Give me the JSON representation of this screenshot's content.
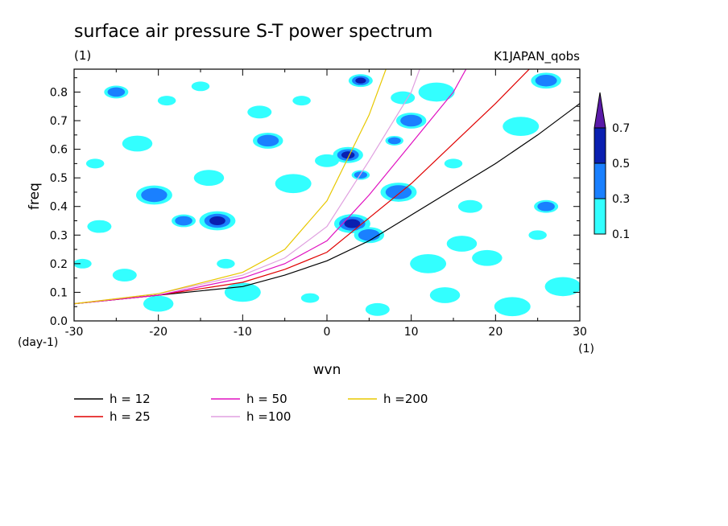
{
  "chart_data": {
    "type": "heatmap",
    "title": "surface air pressure S-T power spectrum",
    "subtitle_left": "(1)",
    "subtitle_right": "K1JAPAN_qobs",
    "xlabel": "wvn",
    "ylabel": "freq",
    "x_unit": "(1)",
    "y_unit": "(day-1)",
    "xlim": [
      -30,
      30
    ],
    "ylim": [
      0,
      0.88
    ],
    "x_ticks": [
      -30,
      -20,
      -10,
      0,
      10,
      20,
      30
    ],
    "x_tick_labels": [
      "-30",
      "-20",
      "-10",
      "0",
      "10",
      "20",
      "30"
    ],
    "y_ticks": [
      0,
      0.1,
      0.2,
      0.3,
      0.4,
      0.5,
      0.6,
      0.7,
      0.8
    ],
    "y_tick_labels": [
      "0.0",
      "0.1",
      "0.2",
      "0.3",
      "0.4",
      "0.5",
      "0.6",
      "0.7",
      "0.8"
    ],
    "colorbar": {
      "levels": [
        "0.1",
        "0.3",
        "0.5",
        "0.7"
      ],
      "colors": [
        "#33ffff",
        "#1a80ff",
        "#0a1fb0",
        "#5a1aa8"
      ]
    },
    "contour_blobs": [
      {
        "x": -27.5,
        "y": 0.55,
        "level": 1
      },
      {
        "x": -25,
        "y": 0.8,
        "level": 2
      },
      {
        "x": -22.5,
        "y": 0.62,
        "level": 1
      },
      {
        "x": -20.5,
        "y": 0.44,
        "level": 2
      },
      {
        "x": -19,
        "y": 0.77,
        "level": 1
      },
      {
        "x": -17,
        "y": 0.35,
        "level": 2
      },
      {
        "x": -14,
        "y": 0.5,
        "level": 1
      },
      {
        "x": -13,
        "y": 0.35,
        "level": 3
      },
      {
        "x": -15,
        "y": 0.82,
        "level": 1
      },
      {
        "x": -8,
        "y": 0.73,
        "level": 1
      },
      {
        "x": -7,
        "y": 0.63,
        "level": 2
      },
      {
        "x": -4,
        "y": 0.48,
        "level": 1
      },
      {
        "x": -3,
        "y": 0.77,
        "level": 1
      },
      {
        "x": 0,
        "y": 0.56,
        "level": 1
      },
      {
        "x": 2.5,
        "y": 0.58,
        "level": 3
      },
      {
        "x": 3,
        "y": 0.34,
        "level": 3
      },
      {
        "x": 4,
        "y": 0.51,
        "level": 2
      },
      {
        "x": 4,
        "y": 0.84,
        "level": 3
      },
      {
        "x": 5,
        "y": 0.3,
        "level": 2
      },
      {
        "x": 8.5,
        "y": 0.45,
        "level": 2
      },
      {
        "x": 8,
        "y": 0.63,
        "level": 2
      },
      {
        "x": 9,
        "y": 0.78,
        "level": 1
      },
      {
        "x": 10,
        "y": 0.7,
        "level": 2
      },
      {
        "x": 13,
        "y": 0.8,
        "level": 1
      },
      {
        "x": 15,
        "y": 0.55,
        "level": 1
      },
      {
        "x": 17,
        "y": 0.4,
        "level": 1
      },
      {
        "x": 19,
        "y": 0.22,
        "level": 1
      },
      {
        "x": 23,
        "y": 0.68,
        "level": 1
      },
      {
        "x": 25,
        "y": 0.3,
        "level": 1
      },
      {
        "x": 26,
        "y": 0.4,
        "level": 2
      },
      {
        "x": 26,
        "y": 0.84,
        "level": 2
      },
      {
        "x": 28,
        "y": 0.12,
        "level": 1
      },
      {
        "x": -29,
        "y": 0.2,
        "level": 1
      },
      {
        "x": -24,
        "y": 0.16,
        "level": 1
      },
      {
        "x": -20,
        "y": 0.06,
        "level": 1
      },
      {
        "x": -10,
        "y": 0.1,
        "level": 1
      },
      {
        "x": -2,
        "y": 0.08,
        "level": 1
      },
      {
        "x": 6,
        "y": 0.04,
        "level": 1
      },
      {
        "x": 14,
        "y": 0.09,
        "level": 1
      },
      {
        "x": 22,
        "y": 0.05,
        "level": 1
      },
      {
        "x": -12,
        "y": 0.2,
        "level": 1
      },
      {
        "x": -27,
        "y": 0.33,
        "level": 1
      },
      {
        "x": 16,
        "y": 0.27,
        "level": 1
      },
      {
        "x": 12,
        "y": 0.2,
        "level": 1
      }
    ],
    "series": [
      {
        "name": "h = 12",
        "color": "#000000",
        "x": [
          -30,
          -20,
          -10,
          -5,
          0,
          5,
          10,
          15,
          20,
          25,
          30
        ],
        "y": [
          0.06,
          0.09,
          0.12,
          0.16,
          0.21,
          0.28,
          0.37,
          0.46,
          0.55,
          0.65,
          0.76
        ]
      },
      {
        "name": "h = 25",
        "color": "#e00000",
        "x": [
          -30,
          -20,
          -10,
          -5,
          0,
          5,
          10,
          15,
          20,
          24
        ],
        "y": [
          0.06,
          0.09,
          0.135,
          0.18,
          0.24,
          0.36,
          0.48,
          0.62,
          0.76,
          0.88
        ]
      },
      {
        "name": "h = 50",
        "color": "#e010c0",
        "x": [
          -30,
          -20,
          -10,
          -5,
          0,
          5,
          10,
          15,
          16.5
        ],
        "y": [
          0.06,
          0.09,
          0.15,
          0.2,
          0.28,
          0.44,
          0.62,
          0.8,
          0.88
        ]
      },
      {
        "name": "h =100",
        "color": "#e0a0e0",
        "x": [
          -30,
          -20,
          -10,
          -5,
          0,
          5,
          10,
          11
        ],
        "y": [
          0.06,
          0.095,
          0.16,
          0.22,
          0.33,
          0.56,
          0.8,
          0.88
        ]
      },
      {
        "name": "h =200",
        "color": "#e8c800",
        "x": [
          -30,
          -20,
          -10,
          -5,
          0,
          3,
          5,
          7
        ],
        "y": [
          0.06,
          0.095,
          0.17,
          0.25,
          0.42,
          0.6,
          0.72,
          0.88
        ]
      }
    ]
  }
}
